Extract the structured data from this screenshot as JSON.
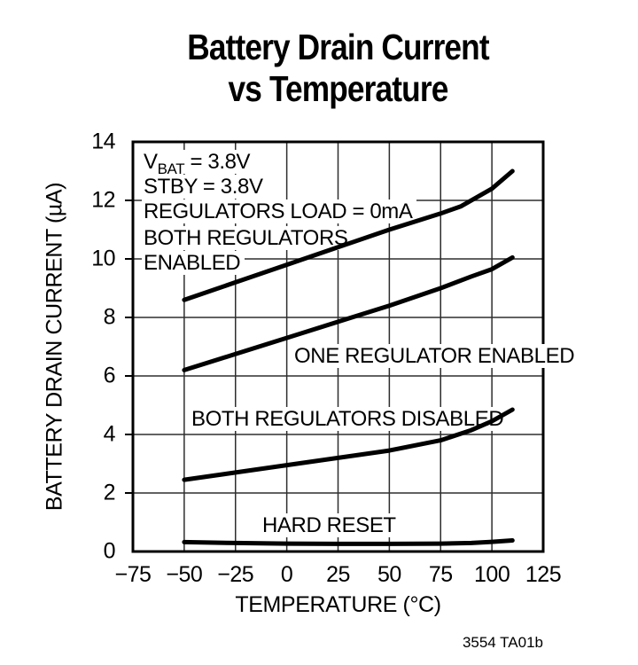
{
  "figure": {
    "title_line1": "Battery Drain Current",
    "title_line2": "vs Temperature",
    "footer": "3554 TA01b"
  },
  "conditions": {
    "vbat_symbol": "V",
    "vbat_subscript": "BAT",
    "vbat_value": " = 3.8V",
    "stby_line": "STBY = 3.8V",
    "load_line": "REGULATORS LOAD = 0mA"
  },
  "curve_labels": {
    "both_enabled_line1": "BOTH REGULATORS",
    "both_enabled_line2": "ENABLED",
    "one_enabled": "ONE REGULATOR ENABLED",
    "both_disabled": "BOTH REGULATORS DISABLED",
    "hard_reset": "HARD RESET"
  },
  "chart_data": {
    "type": "line",
    "title": "Battery Drain Current vs Temperature",
    "xlabel": "TEMPERATURE (°C)",
    "ylabel": "BATTERY DRAIN CURRENT (µA)",
    "xlim": [
      -75,
      125
    ],
    "ylim": [
      0,
      14
    ],
    "x_ticks": [
      -75,
      -50,
      -25,
      0,
      25,
      50,
      75,
      100,
      125
    ],
    "y_ticks": [
      0,
      2,
      4,
      6,
      8,
      10,
      12,
      14
    ],
    "grid": true,
    "line_color": "#000000",
    "annotations": [
      "VBAT = 3.8V",
      "STBY = 3.8V",
      "REGULATORS LOAD = 0mA"
    ],
    "series": [
      {
        "name": "BOTH REGULATORS ENABLED",
        "x": [
          -50,
          -25,
          0,
          25,
          50,
          75,
          85,
          100,
          110
        ],
        "y": [
          8.6,
          9.2,
          9.8,
          10.4,
          11.0,
          11.55,
          11.8,
          12.4,
          13.0
        ]
      },
      {
        "name": "ONE REGULATOR ENABLED",
        "x": [
          -50,
          -25,
          0,
          25,
          50,
          75,
          90,
          100,
          110
        ],
        "y": [
          6.2,
          6.75,
          7.3,
          7.85,
          8.4,
          9.0,
          9.4,
          9.65,
          10.05
        ]
      },
      {
        "name": "BOTH REGULATORS DISABLED",
        "x": [
          -50,
          -25,
          0,
          25,
          50,
          75,
          90,
          100,
          110
        ],
        "y": [
          2.45,
          2.7,
          2.95,
          3.2,
          3.45,
          3.8,
          4.15,
          4.45,
          4.85
        ]
      },
      {
        "name": "HARD RESET",
        "x": [
          -50,
          -25,
          0,
          25,
          50,
          75,
          90,
          100,
          110
        ],
        "y": [
          0.32,
          0.29,
          0.27,
          0.26,
          0.26,
          0.27,
          0.29,
          0.33,
          0.38
        ]
      }
    ]
  }
}
